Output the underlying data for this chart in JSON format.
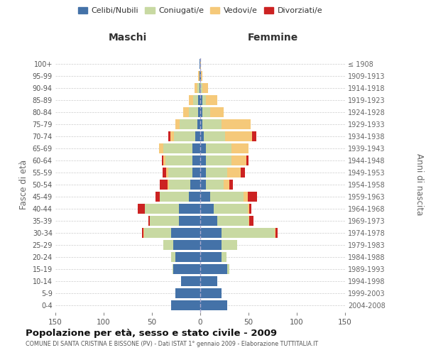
{
  "age_groups": [
    "0-4",
    "5-9",
    "10-14",
    "15-19",
    "20-24",
    "25-29",
    "30-34",
    "35-39",
    "40-44",
    "45-49",
    "50-54",
    "55-59",
    "60-64",
    "65-69",
    "70-74",
    "75-79",
    "80-84",
    "85-89",
    "90-94",
    "95-99",
    "100+"
  ],
  "birth_years": [
    "2004-2008",
    "1999-2003",
    "1994-1998",
    "1989-1993",
    "1984-1988",
    "1979-1983",
    "1974-1978",
    "1969-1973",
    "1964-1968",
    "1959-1963",
    "1954-1958",
    "1949-1953",
    "1944-1948",
    "1939-1943",
    "1934-1938",
    "1929-1933",
    "1924-1928",
    "1919-1923",
    "1914-1918",
    "1909-1913",
    "≤ 1908"
  ],
  "maschi": {
    "celibe": [
      30,
      26,
      20,
      28,
      26,
      28,
      30,
      22,
      22,
      12,
      10,
      8,
      8,
      8,
      5,
      3,
      2,
      2,
      1,
      1,
      1
    ],
    "coniugato": [
      0,
      0,
      0,
      1,
      4,
      10,
      28,
      30,
      35,
      30,
      22,
      25,
      28,
      30,
      22,
      18,
      10,
      5,
      2,
      0,
      0
    ],
    "vedovo": [
      0,
      0,
      0,
      0,
      0,
      0,
      1,
      0,
      0,
      0,
      2,
      2,
      2,
      5,
      4,
      5,
      6,
      5,
      3,
      1,
      0
    ],
    "divorziato": [
      0,
      0,
      0,
      0,
      0,
      0,
      1,
      2,
      8,
      4,
      8,
      4,
      2,
      0,
      2,
      0,
      0,
      0,
      0,
      0,
      0
    ]
  },
  "femmine": {
    "nubile": [
      28,
      22,
      18,
      28,
      22,
      22,
      22,
      18,
      14,
      10,
      6,
      6,
      6,
      6,
      4,
      2,
      2,
      2,
      0,
      1,
      0
    ],
    "coniugata": [
      0,
      0,
      0,
      2,
      5,
      16,
      55,
      32,
      35,
      35,
      18,
      22,
      26,
      26,
      22,
      20,
      8,
      4,
      2,
      0,
      0
    ],
    "vedova": [
      0,
      0,
      0,
      0,
      0,
      0,
      1,
      1,
      2,
      4,
      6,
      14,
      16,
      18,
      28,
      30,
      14,
      12,
      6,
      1,
      1
    ],
    "divorziata": [
      0,
      0,
      0,
      0,
      0,
      0,
      2,
      4,
      2,
      10,
      4,
      4,
      2,
      0,
      4,
      0,
      0,
      0,
      0,
      0,
      0
    ]
  },
  "colors": {
    "celibe": "#4472a8",
    "coniugato": "#c8d9a2",
    "vedovo": "#f5c97a",
    "divorziato": "#cc2222"
  },
  "legend_labels": [
    "Celibi/Nubili",
    "Coniugati/e",
    "Vedovi/e",
    "Divorziati/e"
  ],
  "title": "Popolazione per età, sesso e stato civile - 2009",
  "subtitle": "COMUNE DI SANTA CRISTINA E BISSONE (PV) - Dati ISTAT 1° gennaio 2009 - Elaborazione TUTTITALIA.IT",
  "xlabel_left": "Maschi",
  "xlabel_right": "Femmine",
  "ylabel_left": "Fasce di età",
  "ylabel_right": "Anni di nascita",
  "xlim": 150,
  "bg_color": "#ffffff",
  "grid_color": "#cccccc"
}
